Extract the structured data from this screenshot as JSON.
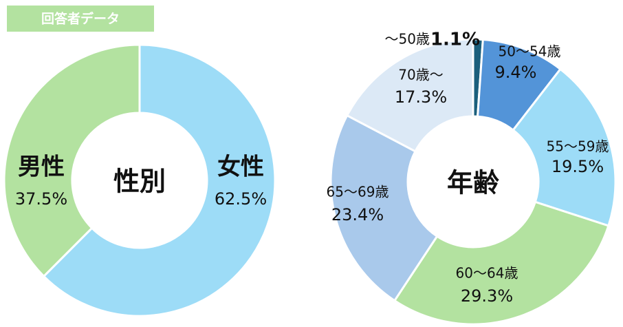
{
  "header": {
    "title": "回答者データ"
  },
  "chart_data": [
    {
      "type": "donut",
      "title": "性別",
      "categories": [
        "女性",
        "男性"
      ],
      "values": [
        62.5,
        37.5
      ],
      "value_labels": [
        "62.5%",
        "37.5%"
      ],
      "colors": [
        "#9ddcf7",
        "#b3e2a0"
      ]
    },
    {
      "type": "donut",
      "title": "年齢",
      "categories": [
        "～50歳",
        "50～54歳",
        "55～59歳",
        "60～64歳",
        "65～69歳",
        "70歳～"
      ],
      "values": [
        1.1,
        9.4,
        19.5,
        29.3,
        23.4,
        17.3
      ],
      "value_labels": [
        "1.1%",
        "9.4%",
        "19.5%",
        "29.3%",
        "23.4%",
        "17.3%"
      ],
      "colors": [
        "#1b5f7c",
        "#5394d8",
        "#9ddcf7",
        "#b3e2a0",
        "#a9c9eb",
        "#dce9f6"
      ]
    }
  ]
}
